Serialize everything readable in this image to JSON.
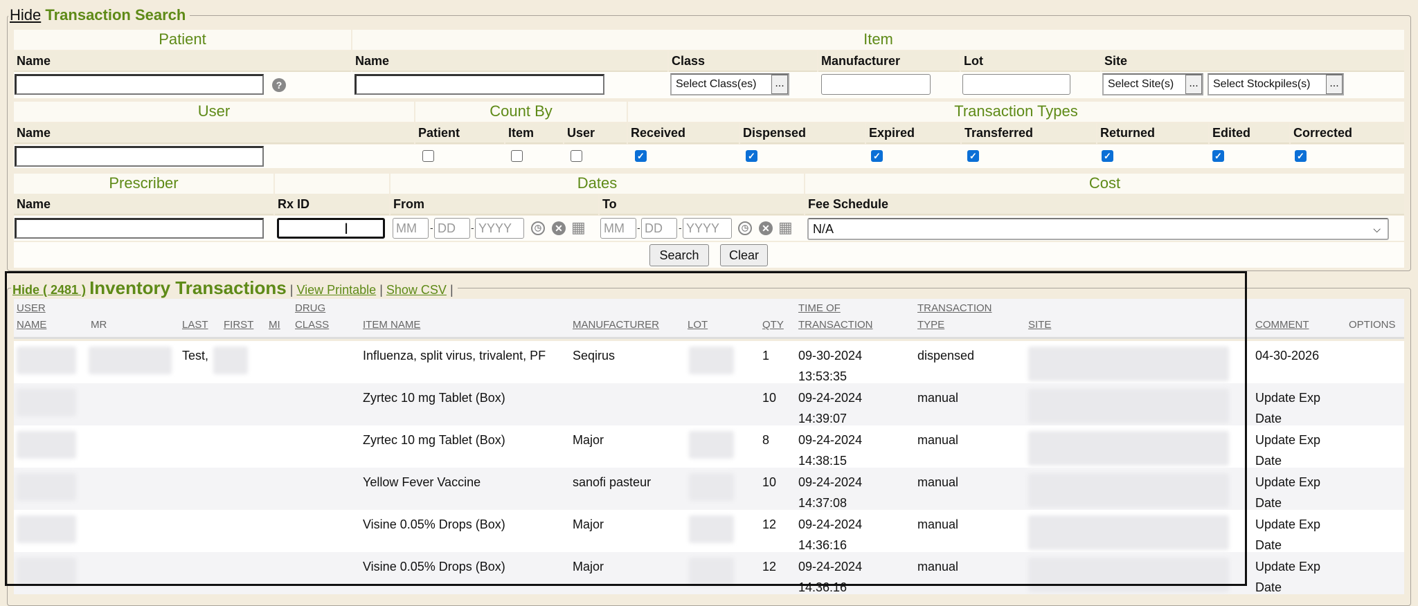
{
  "search": {
    "hide": "Hide",
    "title": "Transaction Search",
    "patient": {
      "header": "Patient",
      "name_label": "Name",
      "name_value": "",
      "help_icon": "question-circle"
    },
    "item": {
      "header": "Item",
      "name_label": "Name",
      "class_label": "Class",
      "class_button": "Select Class(es)",
      "manufacturer_label": "Manufacturer",
      "lot_label": "Lot",
      "site_label": "Site",
      "site_button": "Select Site(s)",
      "stockpiles_button": "Select Stockpiles(s)",
      "dots": "..."
    },
    "user": {
      "header": "User",
      "name_label": "Name"
    },
    "count_by": {
      "header": "Count By",
      "options": [
        {
          "label": "Patient",
          "checked": false
        },
        {
          "label": "Item",
          "checked": false
        },
        {
          "label": "User",
          "checked": false
        }
      ]
    },
    "transaction_types": {
      "header": "Transaction Types",
      "options": [
        {
          "label": "Received",
          "checked": true
        },
        {
          "label": "Dispensed",
          "checked": true
        },
        {
          "label": "Expired",
          "checked": true
        },
        {
          "label": "Transferred",
          "checked": true
        },
        {
          "label": "Returned",
          "checked": true
        },
        {
          "label": "Edited",
          "checked": true
        },
        {
          "label": "Corrected",
          "checked": true
        }
      ]
    },
    "prescriber": {
      "header": "Prescriber",
      "name_label": "Name",
      "rx_label": "Rx ID"
    },
    "dates": {
      "header": "Dates",
      "from_label": "From",
      "to_label": "To",
      "mm": "MM",
      "dd": "DD",
      "yyyy": "YYYY"
    },
    "cost": {
      "header": "Cost",
      "fee_label": "Fee Schedule",
      "fee_value": "N/A"
    },
    "search_button": "Search",
    "clear_button": "Clear"
  },
  "results": {
    "hide": "Hide ( 2481 )",
    "title": "Inventory Transactions",
    "view_printable": "View Printable",
    "show_csv": "Show CSV",
    "sep": "|",
    "columns": {
      "user1": "USER",
      "user2": "NAME",
      "mr": "MR",
      "last": "LAST",
      "first": "FIRST",
      "mi": "MI",
      "drug1": "DRUG",
      "drug2": "CLASS",
      "item": "ITEM NAME",
      "manufacturer": "MANUFACTURER",
      "lot": "LOT",
      "qty": "QTY",
      "time1": "TIME OF",
      "time2": "TRANSACTION",
      "type1": "TRANSACTION",
      "type2": "TYPE",
      "site": "SITE",
      "comment": "COMMENT",
      "options": "OPTIONS"
    },
    "rows": [
      {
        "last": "Test,",
        "item": "Influenza, split virus, trivalent, PF",
        "manufacturer": "Seqirus",
        "qty": "1",
        "date": "09-30-2024",
        "time": "13:53:35",
        "type": "dispensed",
        "comment": "04-30-2026"
      },
      {
        "last": "",
        "item": "Zyrtec 10 mg Tablet (Box)",
        "manufacturer": "",
        "qty": "10",
        "date": "09-24-2024",
        "time": "14:39:07",
        "type": "manual",
        "comment": "Update Exp Date"
      },
      {
        "last": "",
        "item": "Zyrtec 10 mg Tablet (Box)",
        "manufacturer": "Major",
        "qty": "8",
        "date": "09-24-2024",
        "time": "14:38:15",
        "type": "manual",
        "comment": "Update Exp Date"
      },
      {
        "last": "",
        "item": "Yellow Fever Vaccine",
        "manufacturer": "sanofi pasteur",
        "qty": "10",
        "date": "09-24-2024",
        "time": "14:37:08",
        "type": "manual",
        "comment": "Update Exp Date"
      },
      {
        "last": "",
        "item": "Visine 0.05% Drops (Box)",
        "manufacturer": "Major",
        "qty": "12",
        "date": "09-24-2024",
        "time": "14:36:16",
        "type": "manual",
        "comment": "Update Exp Date"
      },
      {
        "last": "",
        "item": "Visine 0.05% Drops (Box)",
        "manufacturer": "Major",
        "qty": "12",
        "date": "09-24-2024",
        "time": "14:36:16",
        "type": "manual",
        "comment": "Update Exp Date"
      }
    ]
  },
  "colors": {
    "accent": "#5e8a17",
    "background": "#f3ecdd",
    "checkbox": "#0b6fd6"
  }
}
